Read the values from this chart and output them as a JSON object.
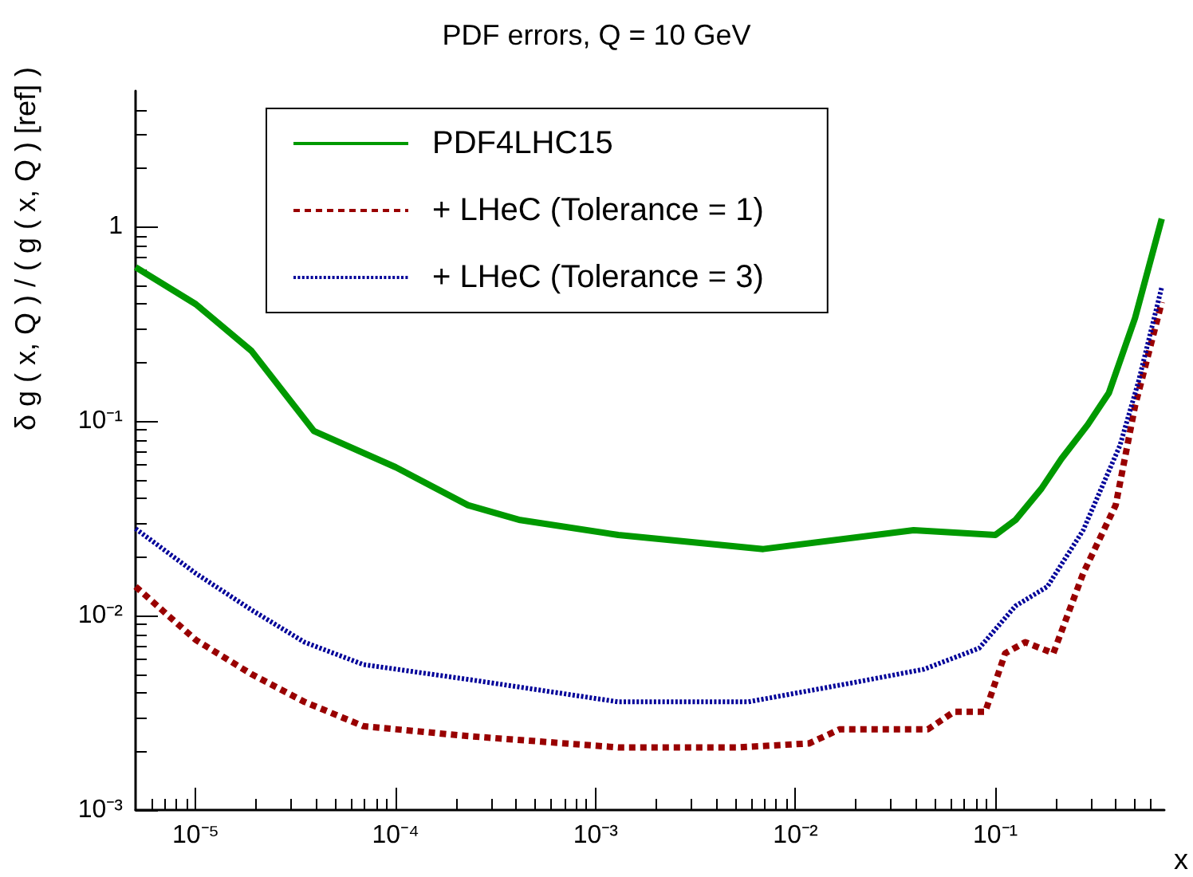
{
  "chart_data": {
    "type": "line",
    "title": "PDF errors, Q = 10 GeV",
    "xlabel": "x",
    "ylabel": "δ g ( x, Q ) / ( g ( x, Q ) [ref] )",
    "log": "xy",
    "xlim": [
      5e-06,
      0.7
    ],
    "ylim": [
      0.001,
      5
    ],
    "xticks": [
      {
        "value": 1e-05,
        "label": "10⁻⁵"
      },
      {
        "value": 0.0001,
        "label": "10⁻⁴"
      },
      {
        "value": 0.001,
        "label": "10⁻³"
      },
      {
        "value": 0.01,
        "label": "10⁻²"
      },
      {
        "value": 0.1,
        "label": "10⁻¹"
      }
    ],
    "yticks": [
      {
        "value": 0.001,
        "label": "10⁻³"
      },
      {
        "value": 0.01,
        "label": "10⁻²"
      },
      {
        "value": 0.1,
        "label": "10⁻¹"
      },
      1
    ],
    "grid": false,
    "legend": "top left",
    "marker": "none",
    "series": [
      {
        "name": "PDF4LHC15",
        "color": "#009900",
        "line_style": "solid",
        "x": [
          5e-06,
          1e-05,
          1.9e-05,
          3.9e-05,
          0.0001,
          0.00023,
          0.00042,
          0.0013,
          0.0069,
          0.039,
          0.1,
          0.126,
          0.17,
          0.214,
          0.29,
          0.37,
          0.5,
          0.68
        ],
        "values": [
          0.62,
          0.4,
          0.23,
          0.089,
          0.058,
          0.037,
          0.031,
          0.026,
          0.022,
          0.0275,
          0.026,
          0.031,
          0.045,
          0.064,
          0.096,
          0.14,
          0.34,
          1.1
        ]
      },
      {
        "name": "+ LHeC (Tolerance = 1)",
        "color": "#990000",
        "line_style": "dashed",
        "x": [
          5e-06,
          1e-05,
          1.9e-05,
          3.5e-05,
          6.9e-05,
          0.00023,
          0.0013,
          0.0051,
          0.0117,
          0.0166,
          0.046,
          0.062,
          0.089,
          0.112,
          0.141,
          0.195,
          0.275,
          0.4,
          0.5,
          0.68
        ],
        "values": [
          0.0141,
          0.0075,
          0.005,
          0.0036,
          0.0027,
          0.0024,
          0.0021,
          0.0021,
          0.0022,
          0.0026,
          0.0026,
          0.0032,
          0.0032,
          0.0064,
          0.0073,
          0.0064,
          0.0165,
          0.037,
          0.12,
          0.41
        ]
      },
      {
        "name": "+ LHeC (Tolerance = 3)",
        "color": "#000099",
        "line_style": "dotted",
        "x": [
          5e-06,
          1e-05,
          1.9e-05,
          3.5e-05,
          6.9e-05,
          0.00023,
          0.0013,
          0.0058,
          0.019,
          0.044,
          0.083,
          0.126,
          0.182,
          0.275,
          0.42,
          0.52,
          0.68
        ],
        "values": [
          0.028,
          0.0165,
          0.0107,
          0.0073,
          0.0056,
          0.0047,
          0.0036,
          0.0036,
          0.0045,
          0.0053,
          0.0068,
          0.0112,
          0.0141,
          0.0275,
          0.075,
          0.16,
          0.49
        ]
      }
    ]
  }
}
